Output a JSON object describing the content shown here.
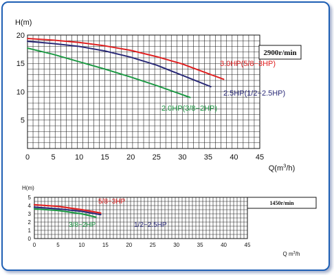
{
  "chart_data": [
    {
      "type": "line",
      "ylabel": "H(m)",
      "xlabel_main": "Q(m",
      "xlabel_sup": "3",
      "xlabel_tail": "/h)",
      "speed_label": "2900r/min",
      "xlim": [
        0,
        45
      ],
      "ylim": [
        0,
        20
      ],
      "x_ticks": [
        0,
        5,
        10,
        15,
        20,
        25,
        30,
        35,
        40,
        45
      ],
      "y_ticks": [
        5,
        10,
        15,
        20
      ],
      "grid": true,
      "series": [
        {
          "name": "3.0HP(5/8−3HP)",
          "color": "#e02020",
          "x": [
            0,
            5,
            10,
            15,
            20,
            25,
            30,
            35,
            38
          ],
          "y": [
            19.4,
            19.1,
            18.7,
            18.1,
            17.3,
            16.2,
            14.9,
            13.2,
            12.2
          ]
        },
        {
          "name": "2.5HP(1/2−2.5HP)",
          "color": "#2a2a78",
          "x": [
            0,
            5,
            10,
            15,
            20,
            25,
            30,
            35.5
          ],
          "y": [
            18.9,
            18.5,
            18.0,
            17.2,
            16.1,
            14.7,
            12.9,
            10.9
          ]
        },
        {
          "name": "2.0HP(3/8−2HP)",
          "color": "#1e9a45",
          "x": [
            0,
            5,
            10,
            15,
            20,
            25,
            31.5
          ],
          "y": [
            17.7,
            16.6,
            15.3,
            14.0,
            12.6,
            11.1,
            9.0
          ]
        }
      ]
    },
    {
      "type": "line",
      "ylabel": "H(m)",
      "xlabel_main": "Q m",
      "xlabel_sup": "3",
      "xlabel_tail": "/h",
      "speed_label": "1450r/min",
      "xlim": [
        0,
        45
      ],
      "ylim": [
        0,
        5
      ],
      "x_ticks": [
        0,
        5,
        10,
        15,
        20,
        25,
        30,
        35,
        40,
        45
      ],
      "y_ticks": [
        0,
        1,
        2,
        3,
        4,
        5
      ],
      "grid": true,
      "series": [
        {
          "name": "5/8−3HP",
          "color": "#e02020",
          "x": [
            0,
            5,
            10,
            14
          ],
          "y": [
            4.1,
            3.9,
            3.5,
            3.1
          ]
        },
        {
          "name": "1/2−2.5HP",
          "color": "#2a2a78",
          "x": [
            0,
            5,
            10,
            14
          ],
          "y": [
            3.8,
            3.6,
            3.3,
            2.9
          ]
        },
        {
          "name": "3/8−2HP",
          "color": "#1e9a45",
          "x": [
            0,
            5,
            10,
            13
          ],
          "y": [
            3.6,
            3.4,
            3.0,
            2.6
          ]
        }
      ]
    }
  ]
}
